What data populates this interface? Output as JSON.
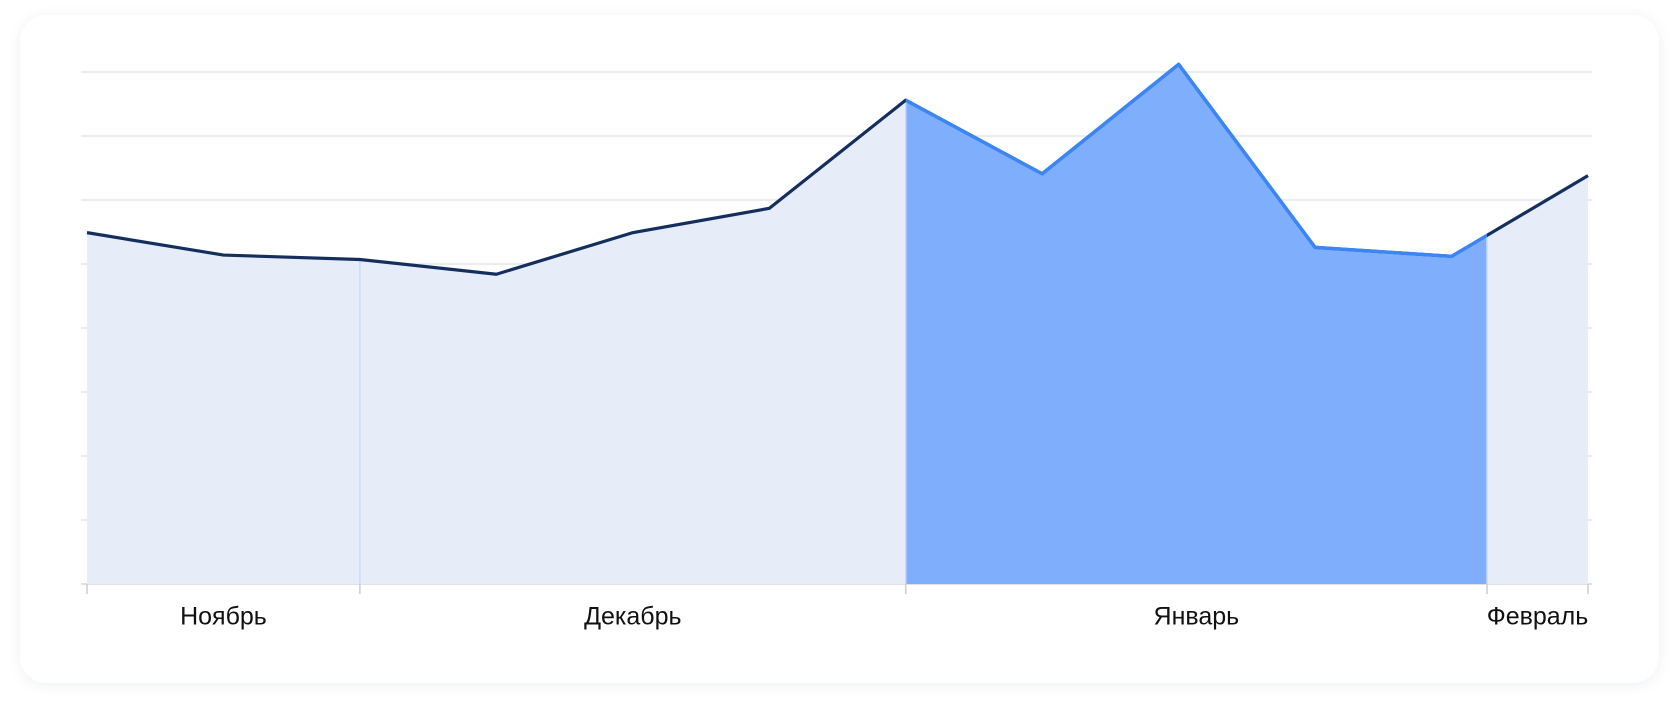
{
  "chart_data": {
    "type": "area",
    "x": [
      0,
      1,
      2,
      3,
      4,
      5,
      6,
      7,
      8,
      9,
      10,
      11
    ],
    "xlim": [
      0,
      11
    ],
    "series": [
      {
        "color": "#142f5e",
        "fill": "#e5ecf9",
        "values": [
          5.49,
          5.14,
          5.07,
          4.84,
          5.49,
          5.87,
          7.56,
          6.41,
          8.12,
          5.26,
          5.12,
          6.38
        ]
      }
    ],
    "highlight": {
      "range": [
        6,
        10.26
      ],
      "color": "#3b86f7",
      "fill": "#7eaefc"
    },
    "months": [
      {
        "label": "Ноябрь",
        "start": 0,
        "end": 2
      },
      {
        "label": "Декабрь",
        "start": 2,
        "end": 6
      },
      {
        "label": "Январь",
        "start": 6,
        "end": 10.26
      },
      {
        "label": "Февраль",
        "start": 10.26,
        "end": 11
      }
    ],
    "ylim": [
      0,
      8
    ],
    "yticks": [
      0,
      1,
      2,
      3,
      4,
      5,
      6,
      7,
      8
    ],
    "grid": true
  }
}
